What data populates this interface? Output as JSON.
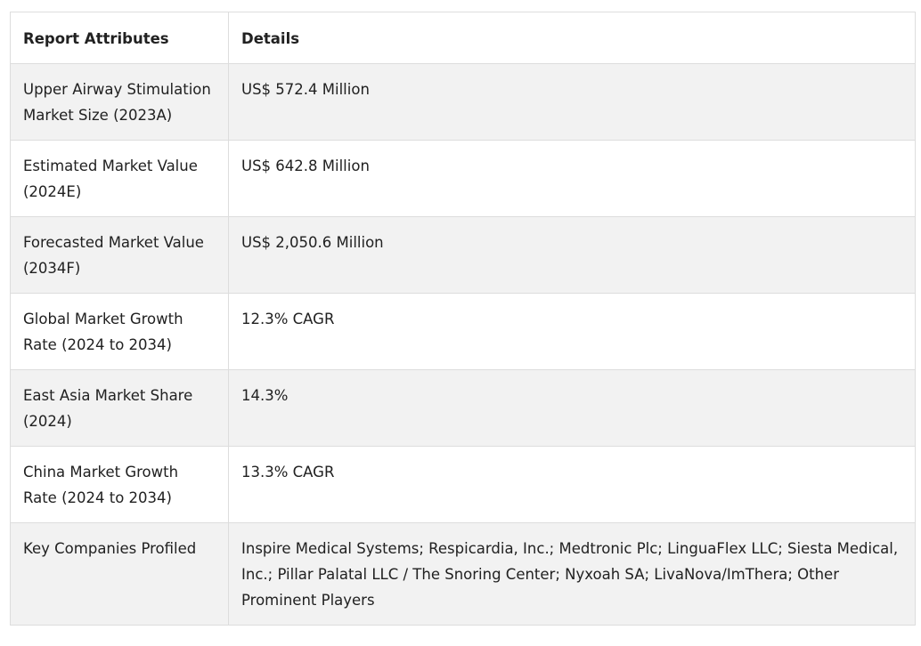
{
  "table": {
    "headers": [
      "Report Attributes",
      "Details"
    ],
    "rows": [
      {
        "attribute": "Upper Airway Stimulation Market Size (2023A)",
        "detail": "US$ 572.4 Million"
      },
      {
        "attribute": "Estimated Market Value (2024E)",
        "detail": "US$ 642.8 Million"
      },
      {
        "attribute": "Forecasted Market Value (2034F)",
        "detail": "US$ 2,050.6 Million"
      },
      {
        "attribute": "Global Market Growth Rate (2024 to 2034)",
        "detail": "12.3% CAGR"
      },
      {
        "attribute": "East Asia Market Share (2024)",
        "detail": "14.3%"
      },
      {
        "attribute": "China Market Growth Rate (2024 to 2034)",
        "detail": "13.3% CAGR"
      },
      {
        "attribute": "Key Companies Profiled",
        "detail": "Inspire Medical Systems; Respicardia, Inc.; Medtronic Plc; LinguaFlex LLC; Siesta Medical, Inc.; Pillar Palatal LLC / The Snoring Center; Nyxoah SA; LivaNova/ImThera; Other Prominent Players"
      }
    ]
  },
  "colors": {
    "striped_row": "#f2f2f2",
    "border": "#dddddd",
    "text": "#212121"
  }
}
